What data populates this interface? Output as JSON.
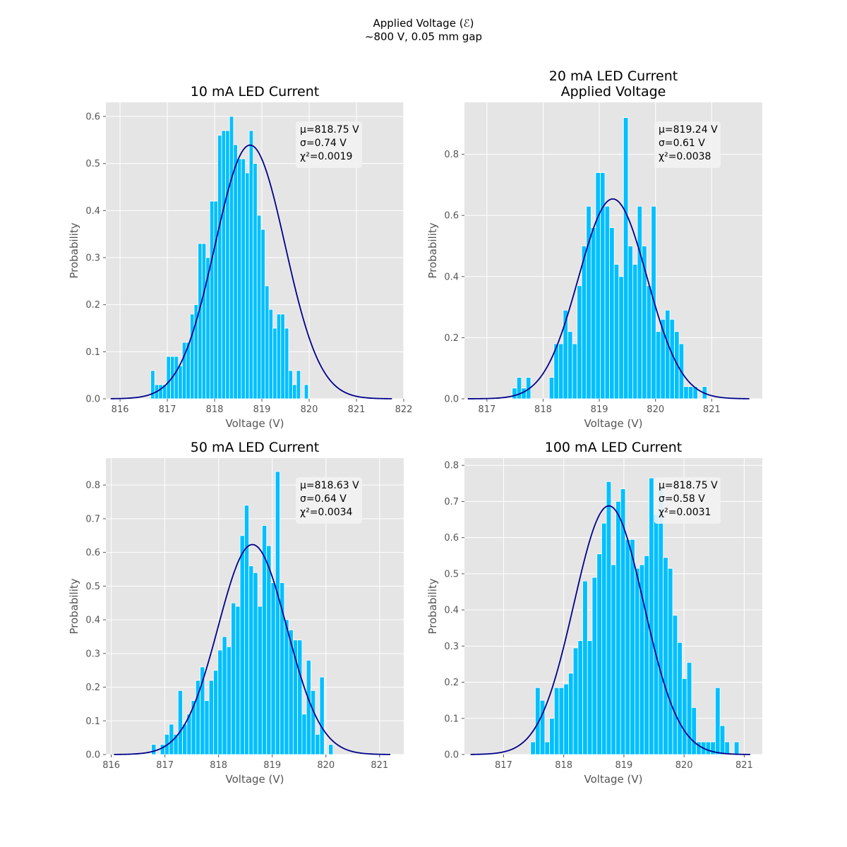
{
  "figure": {
    "title_line1": "Applied Voltage (ℰ)",
    "title_line2": "~800 V, 0.05 mm gap"
  },
  "colors": {
    "bar": "#00bfff",
    "fit": "#00008b",
    "plot_bg": "#e5e5e5",
    "grid": "#ffffff",
    "stat_box": "#f2f2f2"
  },
  "chart_data": [
    {
      "type": "bar",
      "title_lines": [
        "10 mA LED Current"
      ],
      "xlabel": "Voltage (V)",
      "ylabel": "Probability",
      "xlim": [
        815.7,
        822.0
      ],
      "ylim": [
        0,
        0.63
      ],
      "xticks": [
        816,
        817,
        818,
        819,
        820,
        821,
        822
      ],
      "yticks": [
        0.0,
        0.1,
        0.2,
        0.3,
        0.4,
        0.5,
        0.6
      ],
      "ytick_labels": [
        "0.0",
        "0.1",
        "0.2",
        "0.3",
        "0.4",
        "0.5",
        "0.6"
      ],
      "bin_start": 816.65,
      "bin_width": 0.0833,
      "values": [
        0.06,
        0.03,
        0.03,
        0.03,
        0.09,
        0.09,
        0.09,
        0.07,
        0.12,
        0.12,
        0.18,
        0.2,
        0.33,
        0.33,
        0.3,
        0.42,
        0.42,
        0.56,
        0.57,
        0.57,
        0.6,
        0.54,
        0.51,
        0.51,
        0.48,
        0.57,
        0.5,
        0.39,
        0.36,
        0.24,
        0.19,
        0.15,
        0.18,
        0.18,
        0.15,
        0.06,
        0.03,
        0.06,
        0.0,
        0.03
      ],
      "fit": {
        "mu": 818.75,
        "sigma": 0.74,
        "x_range": [
          815.8,
          821.75
        ]
      },
      "stats": [
        "μ=818.75 V",
        "σ=0.74 V",
        "χ²=0.0019"
      ]
    },
    {
      "type": "bar",
      "title_lines": [
        "20 mA LED Current",
        "Applied Voltage"
      ],
      "xlabel": "Voltage (V)",
      "ylabel": "Probability",
      "xlim": [
        816.6,
        821.9
      ],
      "ylim": [
        0,
        0.97
      ],
      "xticks": [
        817,
        818,
        819,
        820,
        821
      ],
      "yticks": [
        0.0,
        0.2,
        0.4,
        0.6,
        0.8
      ],
      "ytick_labels": [
        "0.0",
        "0.2",
        "0.4",
        "0.6",
        "0.8"
      ],
      "bin_start": 817.45,
      "bin_width": 0.0825,
      "values": [
        0.035,
        0.07,
        0.035,
        0.07,
        0.0,
        0.0,
        0.0,
        0.0,
        0.07,
        0.18,
        0.18,
        0.29,
        0.22,
        0.18,
        0.37,
        0.5,
        0.63,
        0.56,
        0.74,
        0.74,
        0.63,
        0.56,
        0.44,
        0.4,
        0.92,
        0.5,
        0.44,
        0.63,
        0.5,
        0.37,
        0.63,
        0.22,
        0.26,
        0.29,
        0.26,
        0.22,
        0.18,
        0.04,
        0.04,
        0.04,
        0.0,
        0.04
      ],
      "fit": {
        "mu": 819.24,
        "sigma": 0.61,
        "x_range": [
          816.66,
          821.67
        ]
      },
      "stats": [
        "μ=819.24 V",
        "σ=0.61 V",
        "χ²=0.0038"
      ]
    },
    {
      "type": "bar",
      "title_lines": [
        "50 mA LED Current"
      ],
      "xlabel": "Voltage (V)",
      "ylabel": "Probability",
      "xlim": [
        815.9,
        821.45
      ],
      "ylim": [
        0,
        0.88
      ],
      "xticks": [
        816,
        817,
        818,
        819,
        820,
        821
      ],
      "yticks": [
        0.0,
        0.1,
        0.2,
        0.3,
        0.4,
        0.5,
        0.6,
        0.7,
        0.8
      ],
      "ytick_labels": [
        "0.0",
        "0.1",
        "0.2",
        "0.3",
        "0.4",
        "0.5",
        "0.6",
        "0.7",
        "0.8"
      ],
      "bin_start": 816.75,
      "bin_width": 0.0825,
      "values": [
        0.03,
        0.0,
        0.03,
        0.06,
        0.09,
        0.06,
        0.19,
        0.09,
        0.12,
        0.16,
        0.22,
        0.26,
        0.16,
        0.22,
        0.25,
        0.31,
        0.35,
        0.32,
        0.45,
        0.44,
        0.65,
        0.74,
        0.56,
        0.54,
        0.44,
        0.68,
        0.62,
        0.51,
        0.84,
        0.51,
        0.4,
        0.37,
        0.34,
        0.34,
        0.12,
        0.28,
        0.19,
        0.06,
        0.23,
        0.0,
        0.03
      ],
      "fit": {
        "mu": 818.63,
        "sigma": 0.64,
        "x_range": [
          816.05,
          821.2
        ]
      },
      "stats": [
        "μ=818.63 V",
        "σ=0.64 V",
        "χ²=0.0034"
      ]
    },
    {
      "type": "bar",
      "title_lines": [
        "100 mA LED Current"
      ],
      "xlabel": "Voltage (V)",
      "ylabel": "Probability",
      "xlim": [
        816.35,
        821.3
      ],
      "ylim": [
        0,
        0.82
      ],
      "xticks": [
        817,
        818,
        819,
        820,
        821
      ],
      "yticks": [
        0.0,
        0.1,
        0.2,
        0.3,
        0.4,
        0.5,
        0.6,
        0.7,
        0.8
      ],
      "ytick_labels": [
        "0.0",
        "0.1",
        "0.2",
        "0.3",
        "0.4",
        "0.5",
        "0.6",
        "0.7",
        "0.8"
      ],
      "bin_start": 817.45,
      "bin_width": 0.0787,
      "values": [
        0.035,
        0.185,
        0.15,
        0.035,
        0.1,
        0.185,
        0.185,
        0.195,
        0.225,
        0.295,
        0.315,
        0.48,
        0.315,
        0.49,
        0.555,
        0.64,
        0.755,
        0.525,
        0.7,
        0.735,
        0.595,
        0.595,
        0.515,
        0.525,
        0.55,
        0.765,
        0.665,
        0.74,
        0.545,
        0.515,
        0.385,
        0.31,
        0.21,
        0.255,
        0.13,
        0.035,
        0.035,
        0.035,
        0.035,
        0.185,
        0.08,
        0.035,
        0.0,
        0.035
      ],
      "fit": {
        "mu": 818.75,
        "sigma": 0.58,
        "x_range": [
          816.45,
          821.1
        ]
      },
      "stats": [
        "μ=818.75 V",
        "σ=0.58 V",
        "χ²=0.0031"
      ]
    }
  ]
}
